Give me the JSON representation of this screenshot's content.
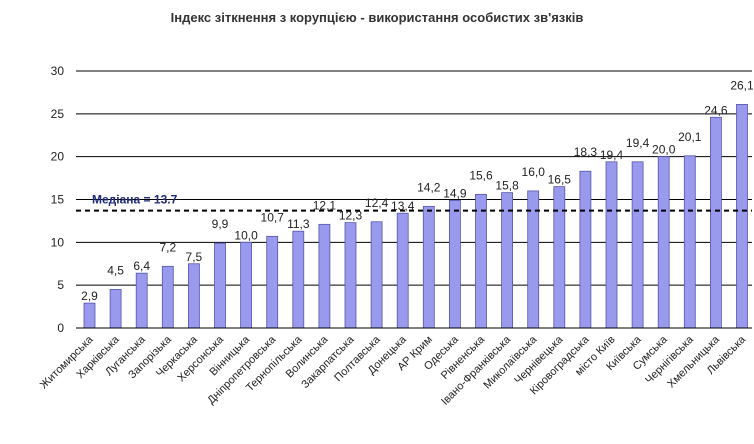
{
  "chart_data": {
    "type": "bar",
    "title": "Індекс зіткнення з корупцією - використання особистих зв'язків",
    "categories": [
      "Житомирська",
      "Харківська",
      "Луганська",
      "Запорізька",
      "Черкаська",
      "Херсонська",
      "Вінницька",
      "Дніпропетровська",
      "Тернопільська",
      "Волинська",
      "Закарпатська",
      "Полтавська",
      "Донецька",
      "АР Крим",
      "Одеська",
      "Рівненська",
      "Івано-Франківська",
      "Миколаївська",
      "Чернівецька",
      "Кіровоградська",
      "місто Київ",
      "Київська",
      "Сумська",
      "Чернігівська",
      "Хмельницька",
      "Львівська"
    ],
    "values": [
      2.9,
      4.5,
      6.4,
      7.2,
      7.5,
      9.9,
      10.0,
      10.7,
      11.3,
      12.1,
      12.3,
      12.4,
      13.4,
      14.2,
      14.9,
      15.6,
      15.8,
      16.0,
      16.5,
      18.3,
      19.4,
      19.4,
      20.0,
      20.1,
      24.6,
      26.1
    ],
    "value_labels": [
      "2,9",
      "4,5",
      "6,4",
      "7,2",
      "7,5",
      "9,9",
      "10,0",
      "10,7",
      "11,3",
      "12,1",
      "12,3",
      "12,4",
      "13,4",
      "14,2",
      "14,9",
      "15,6",
      "15,8",
      "16,0",
      "16,5",
      "18,3",
      "19,4",
      "19,4",
      "20,0",
      "20,1",
      "24,6",
      "26,1"
    ],
    "yticks": [
      "0",
      "5",
      "10",
      "15",
      "20",
      "25",
      "30"
    ],
    "ylim": [
      0,
      30
    ],
    "grid": true,
    "bar_color": "#9999ee",
    "median": {
      "value": 13.7,
      "label": "Медіана = 13.7"
    }
  }
}
